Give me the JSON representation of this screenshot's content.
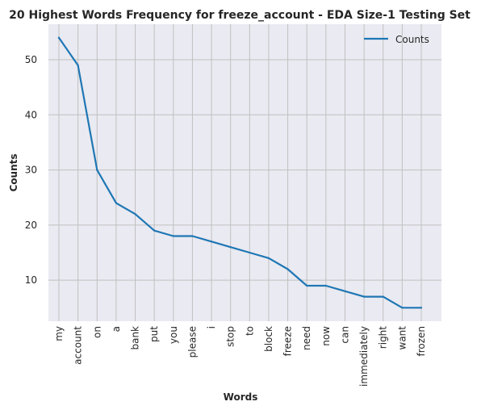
{
  "chart_data": {
    "type": "line",
    "title": "20 Highest Words Frequency for freeze_account - EDA Size-1 Testing Set",
    "xlabel": "Words",
    "ylabel": "Counts",
    "categories": [
      "my",
      "account",
      "on",
      "a",
      "bank",
      "put",
      "you",
      "please",
      "i",
      "stop",
      "to",
      "block",
      "freeze",
      "need",
      "now",
      "can",
      "immediately",
      "right",
      "want",
      "frozen"
    ],
    "series": [
      {
        "name": "Counts",
        "values": [
          54,
          49,
          30,
          24,
          22,
          19,
          18,
          18,
          17,
          16,
          15,
          14,
          12,
          9,
          9,
          8,
          7,
          7,
          5,
          5
        ]
      }
    ],
    "ylim": [
      2.55,
      56.45
    ],
    "yticks": [
      10,
      20,
      30,
      40,
      50
    ],
    "grid": true,
    "legend_position": "top-right",
    "colors": {
      "line": "#1f77b4",
      "plot_background": "#eaeaf2",
      "grid": "#c0c0c0",
      "text": "#262626"
    }
  }
}
